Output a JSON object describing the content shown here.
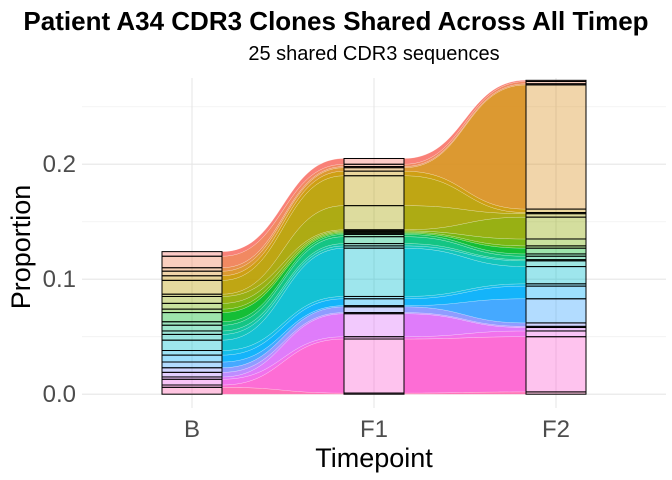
{
  "chart_data": {
    "type": "area",
    "subtype": "alluvial",
    "title": "Patient A34 CDR3 Clones Shared Across All Timep",
    "subtitle": "25 shared CDR3 sequences",
    "xlabel": "Timepoint",
    "ylabel": "Proportion",
    "categories": [
      "B",
      "F1",
      "F2"
    ],
    "ylim": [
      -0.012,
      0.275
    ],
    "yticks": [
      0.0,
      0.1,
      0.2
    ],
    "ytick_labels": [
      "0.0",
      "0.1",
      "0.2"
    ],
    "grid": true,
    "legend": "none",
    "totals": [
      0.125,
      0.206,
      0.274
    ],
    "series": [
      {
        "color": "#f8766d",
        "values": [
          0.004,
          0.005,
          0.001
        ]
      },
      {
        "color": "#f07f55",
        "values": [
          0.01,
          0.002,
          0.002
        ]
      },
      {
        "color": "#e5873d",
        "values": [
          0.003,
          0.001,
          0.001
        ]
      },
      {
        "color": "#d99020",
        "values": [
          0.004,
          0.003,
          0.108
        ]
      },
      {
        "color": "#ca9700",
        "values": [
          0.004,
          0.004,
          0.003
        ]
      },
      {
        "color": "#ba9e00",
        "values": [
          0.012,
          0.026,
          0.001
        ]
      },
      {
        "color": "#a6a400",
        "values": [
          0.002,
          0.021,
          0.003
        ]
      },
      {
        "color": "#8fa900",
        "values": [
          0.006,
          0.001,
          0.019
        ]
      },
      {
        "color": "#70b000",
        "values": [
          0.005,
          0.001,
          0.006
        ]
      },
      {
        "color": "#47b500",
        "values": [
          0.003,
          0.001,
          0.002
        ]
      },
      {
        "color": "#00b925",
        "values": [
          0.008,
          0.001,
          0.005
        ]
      },
      {
        "color": "#00bd58",
        "values": [
          0.003,
          0.002,
          0.002
        ]
      },
      {
        "color": "#00c07a",
        "values": [
          0.005,
          0.006,
          0.003
        ]
      },
      {
        "color": "#00c199",
        "values": [
          0.003,
          0.002,
          0.001
        ]
      },
      {
        "color": "#00c0b5",
        "values": [
          0.005,
          0.002,
          0.005
        ]
      },
      {
        "color": "#00bdd0",
        "values": [
          0.009,
          0.042,
          0.015
        ]
      },
      {
        "color": "#00b7e8",
        "values": [
          0.004,
          0.002,
          0.002
        ]
      },
      {
        "color": "#00aefa",
        "values": [
          0.006,
          0.006,
          0.011
        ]
      },
      {
        "color": "#35a2ff",
        "values": [
          0.005,
          0.001,
          0.021
        ]
      },
      {
        "color": "#8794ff",
        "values": [
          0.004,
          0.005,
          0.003
        ]
      },
      {
        "color": "#b983ff",
        "values": [
          0.004,
          0.001,
          0.001
        ]
      },
      {
        "color": "#dc71fa",
        "values": [
          0.002,
          0.02,
          0.003
        ]
      },
      {
        "color": "#f066ea",
        "values": [
          0.005,
          0.002,
          0.005
        ]
      },
      {
        "color": "#fd61d1",
        "values": [
          0.002,
          0.047,
          0.048
        ]
      },
      {
        "color": "#ff67b0",
        "values": [
          0.006,
          0.001,
          0.002
        ]
      }
    ]
  }
}
